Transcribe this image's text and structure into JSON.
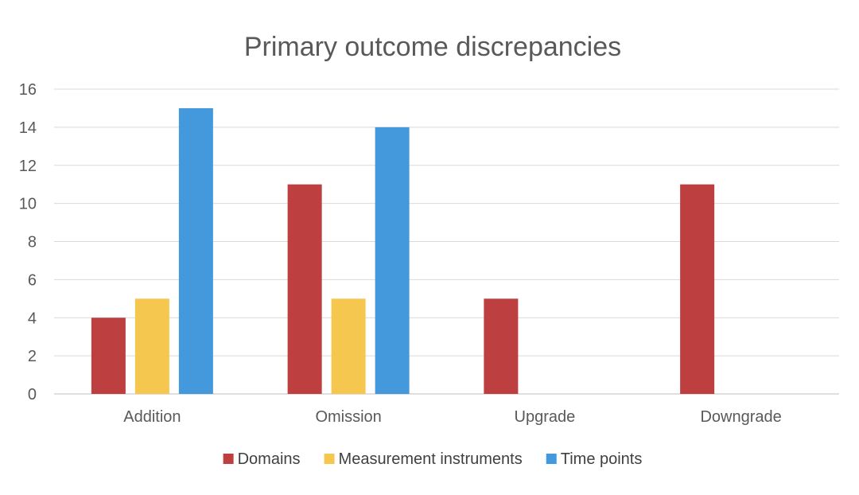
{
  "chart_data": {
    "type": "bar",
    "title": "Primary outcome discrepancies",
    "xlabel": "",
    "ylabel": "",
    "categories": [
      "Addition",
      "Omission",
      "Upgrade",
      "Downgrade"
    ],
    "series": [
      {
        "name": "Domains",
        "color": "#be3f3f",
        "values": [
          4,
          11,
          5,
          11
        ]
      },
      {
        "name": "Measurement instruments",
        "color": "#f5c74e",
        "values": [
          5,
          5,
          0,
          0
        ]
      },
      {
        "name": "Time points",
        "color": "#4499dd",
        "values": [
          15,
          14,
          0,
          0
        ]
      }
    ],
    "ylim": [
      0,
      16
    ],
    "yticks": [
      "0",
      "2",
      "4",
      "6",
      "8",
      "10",
      "12",
      "14",
      "16"
    ],
    "grid": true,
    "legend_position": "bottom"
  }
}
